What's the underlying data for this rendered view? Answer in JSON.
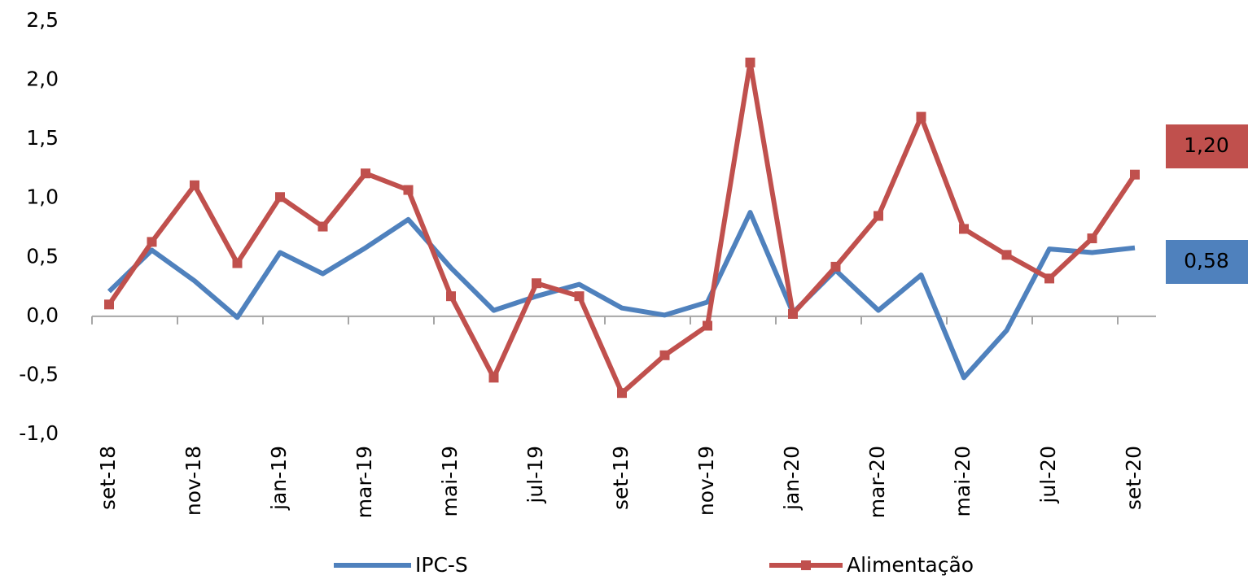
{
  "chart_data": {
    "type": "line",
    "categories": [
      "set-18",
      null,
      "nov-18",
      null,
      "jan-19",
      null,
      "mar-19",
      null,
      "mai-19",
      null,
      "jul-19",
      null,
      "set-19",
      null,
      "nov-19",
      null,
      "jan-20",
      null,
      "mar-20",
      null,
      "mai-20",
      null,
      "jul-20",
      null,
      "set-20"
    ],
    "series": [
      {
        "name": "IPC-S",
        "color": "#4f81bd",
        "marker": false,
        "values": [
          0.21,
          0.56,
          0.3,
          -0.01,
          0.54,
          0.36,
          0.58,
          0.82,
          0.41,
          0.05,
          0.17,
          0.27,
          0.07,
          0.01,
          0.12,
          0.88,
          0.03,
          0.39,
          0.05,
          0.35,
          -0.52,
          -0.12,
          0.57,
          0.54,
          0.58
        ],
        "value_labels": [
          null,
          null,
          null,
          null,
          null,
          null,
          null,
          null,
          null,
          null,
          null,
          null,
          null,
          null,
          null,
          null,
          null,
          null,
          null,
          null,
          null,
          null,
          null,
          null,
          "0,58"
        ]
      },
      {
        "name": "Alimentação",
        "color": "#c0504d",
        "marker": true,
        "values": [
          0.1,
          0.63,
          1.11,
          0.45,
          1.01,
          0.76,
          1.21,
          1.07,
          0.17,
          -0.52,
          0.28,
          0.17,
          -0.65,
          -0.33,
          -0.08,
          2.15,
          0.02,
          0.42,
          0.85,
          1.69,
          0.74,
          0.52,
          0.32,
          0.66,
          1.2
        ],
        "value_labels": [
          null,
          null,
          null,
          null,
          null,
          null,
          null,
          null,
          null,
          null,
          null,
          null,
          null,
          null,
          null,
          null,
          null,
          null,
          null,
          null,
          null,
          null,
          null,
          null,
          "1,20"
        ]
      }
    ],
    "ylim": [
      -1.0,
      2.5
    ],
    "yticks": [
      {
        "value": -1.0,
        "label": "-1,0"
      },
      {
        "value": -0.5,
        "label": "-0,5"
      },
      {
        "value": 0,
        "label": "0,0"
      },
      {
        "value": 0.5,
        "label": "0,5"
      },
      {
        "value": 1.0,
        "label": "1,0"
      },
      {
        "value": 1.5,
        "label": "1,5"
      },
      {
        "value": 2.0,
        "label": "2,0"
      },
      {
        "value": 2.5,
        "label": "2,5"
      }
    ],
    "grid": false
  }
}
